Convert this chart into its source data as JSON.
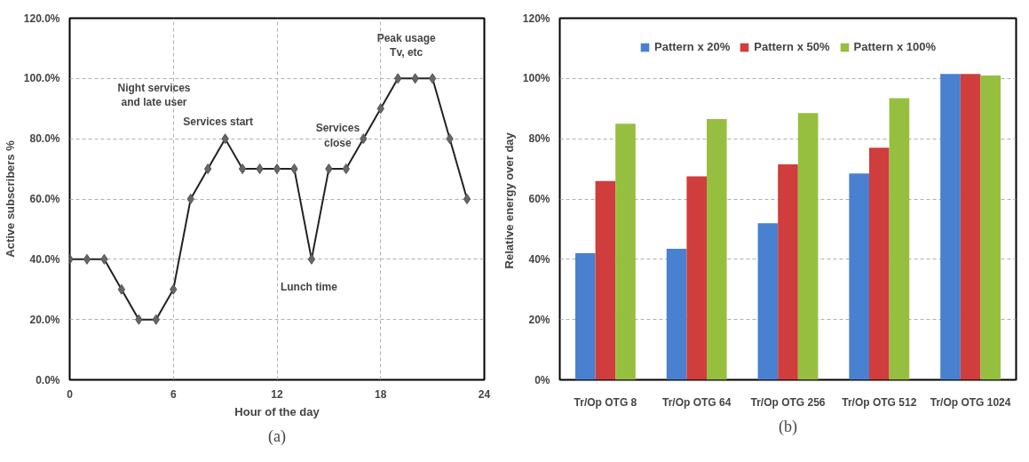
{
  "chart_data": [
    {
      "type": "line",
      "xlabel": "Hour of the day",
      "ylabel": "Active subscribers %",
      "x": [
        0,
        1,
        2,
        3,
        4,
        5,
        6,
        7,
        8,
        9,
        10,
        11,
        12,
        13,
        14,
        15,
        16,
        17,
        18,
        19,
        20,
        21,
        22,
        23
      ],
      "series": [
        {
          "color": "#222222",
          "values": [
            40,
            40,
            40,
            30,
            20,
            20,
            30,
            60,
            70,
            80,
            70,
            70,
            70,
            70,
            40,
            70,
            70,
            80,
            90,
            100,
            100,
            100,
            80,
            60
          ]
        }
      ],
      "marker": "diamond",
      "line_style": "solid",
      "xlim": [
        0,
        24
      ],
      "xticks": [
        0,
        6,
        12,
        18,
        24
      ],
      "ylim": [
        0,
        120
      ],
      "yticks": [
        {
          "value": 0,
          "label": "0.0%"
        },
        {
          "value": 20,
          "label": "20.0%"
        },
        {
          "value": 40,
          "label": "40.0%"
        },
        {
          "value": 60,
          "label": "60.0%"
        },
        {
          "value": 80,
          "label": "80.0%"
        },
        {
          "value": 100,
          "label": "100.0%"
        },
        {
          "value": 120,
          "label": "120.0%"
        }
      ],
      "grid": true,
      "annotations": [
        "Night services\nand late user",
        {
          "text": "Services start",
          "x": 9,
          "y": 80
        },
        {
          "text": "Lunch time",
          "x": 14,
          "y": 40
        },
        {
          "text": "Services\nclose",
          "x": 15,
          "y": 70
        },
        {
          "text": "Peak usage\nTv, etc",
          "x": 20,
          "y": 100
        },
        "(a)"
      ]
    },
    {
      "type": "bar",
      "ylabel": "Relative energy over  day",
      "categories": [
        "Tr/Op OTG 8",
        "Tr/Op OTG 64",
        "Tr/Op OTG 256",
        "Tr/Op OTG 512",
        "Tr/Op OTG 1024"
      ],
      "series": [
        {
          "name": "Pattern x 20%",
          "color": "#4a80d0",
          "values": [
            42,
            43.5,
            52,
            68.5,
            101.5
          ]
        },
        {
          "name": "Pattern x 50%",
          "color": "#cf3d3c",
          "values": [
            66,
            67.5,
            71.5,
            77,
            101.5
          ]
        },
        {
          "name": "Pattern x 100%",
          "color": "#96bf40",
          "values": [
            85,
            86.5,
            88.5,
            93.5,
            101
          ]
        }
      ],
      "ylim": [
        0,
        120
      ],
      "yticks": [
        {
          "value": 0,
          "label": "0%"
        },
        {
          "value": 20,
          "label": "20%"
        },
        {
          "value": 40,
          "label": "40%"
        },
        {
          "value": 60,
          "label": "60%"
        },
        {
          "value": 80,
          "label": "80%"
        },
        {
          "value": 100,
          "label": "100%"
        },
        {
          "value": 120,
          "label": "120%"
        }
      ],
      "grid": "y",
      "legend": "top",
      "annotations": [
        "(b)"
      ]
    }
  ]
}
